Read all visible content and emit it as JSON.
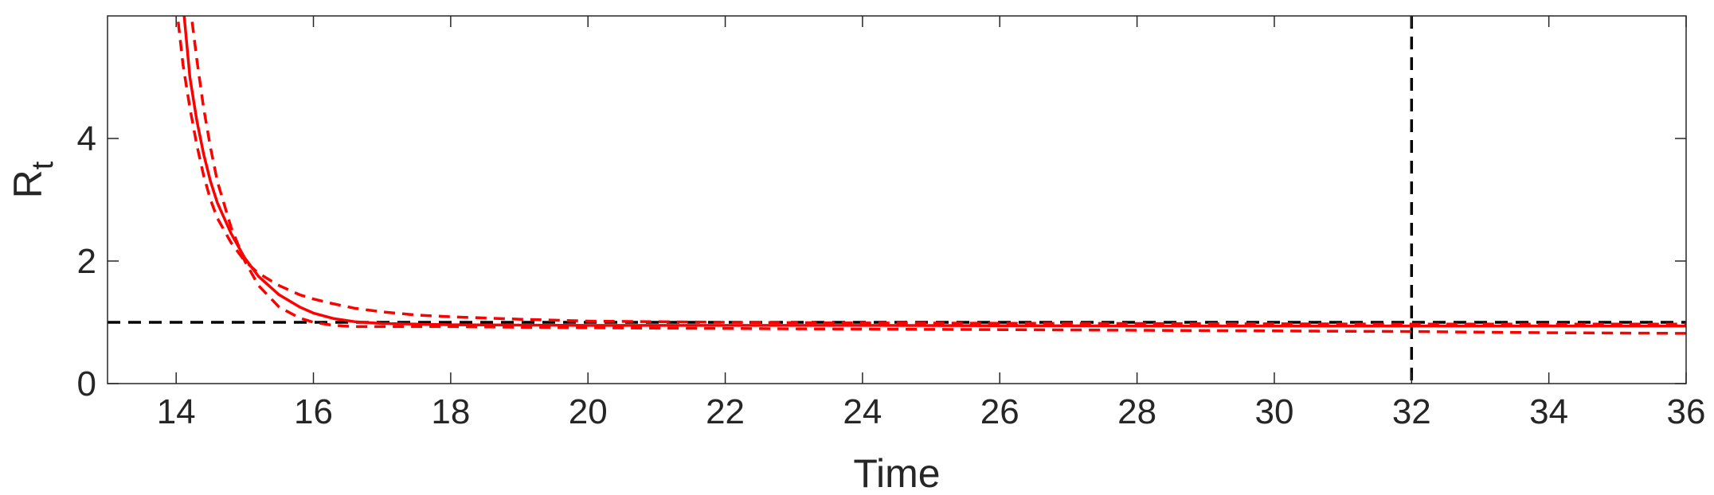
{
  "chart_data": {
    "type": "line",
    "xlabel": "Time",
    "ylabel": "R",
    "ylabel_subscript": "t",
    "xlim": [
      13,
      36
    ],
    "ylim": [
      0,
      6
    ],
    "xticks": [
      14,
      16,
      18,
      20,
      22,
      24,
      26,
      28,
      30,
      32,
      34,
      36
    ],
    "yticks": [
      0,
      2,
      4
    ],
    "grid": false,
    "legend": "none",
    "reference_lines": [
      {
        "orientation": "horizontal",
        "value": 1,
        "style": "dashed",
        "color": "#000000"
      },
      {
        "orientation": "vertical",
        "value": 32,
        "style": "dashed",
        "color": "#000000"
      }
    ],
    "series": [
      {
        "style": "solid",
        "color": "#ff0000",
        "x": [
          14.1,
          14.2,
          14.3,
          14.4,
          14.5,
          14.6,
          14.8,
          15.0,
          15.2,
          15.5,
          15.8,
          16.0,
          16.3,
          16.6,
          17.0,
          17.5,
          18.0,
          19.0,
          20.0,
          22.0,
          24.0,
          26.0,
          28.0,
          30.0,
          32.0,
          34.0,
          36.0
        ],
        "values": [
          6.2,
          5.0,
          4.3,
          3.75,
          3.3,
          2.95,
          2.45,
          2.05,
          1.75,
          1.45,
          1.25,
          1.15,
          1.06,
          1.01,
          0.98,
          0.97,
          0.96,
          0.955,
          0.95,
          0.95,
          0.95,
          0.945,
          0.94,
          0.94,
          0.94,
          0.94,
          0.94
        ]
      },
      {
        "style": "dashed",
        "color": "#ff0000",
        "x": [
          14.0,
          14.1,
          14.2,
          14.3,
          14.4,
          14.5,
          14.6,
          14.8,
          15.0,
          15.2,
          15.5,
          15.8,
          16.0,
          16.3,
          16.6,
          17.0,
          17.5,
          18.0,
          19.0,
          20.0,
          22.0,
          24.0,
          26.0,
          28.0,
          30.0,
          32.0,
          34.0,
          36.0
        ],
        "values": [
          6.2,
          5.2,
          4.5,
          3.9,
          3.4,
          3.0,
          2.7,
          2.3,
          2.0,
          1.8,
          1.6,
          1.45,
          1.38,
          1.3,
          1.23,
          1.17,
          1.12,
          1.09,
          1.05,
          1.02,
          1.0,
          0.99,
          0.985,
          0.98,
          0.975,
          0.97,
          0.97,
          0.97
        ]
      },
      {
        "style": "dashed",
        "color": "#ff0000",
        "x": [
          14.2,
          14.3,
          14.4,
          14.5,
          14.6,
          14.8,
          15.0,
          15.2,
          15.5,
          15.8,
          16.0,
          16.3,
          16.6,
          17.0,
          17.5,
          18.0,
          19.0,
          20.0,
          22.0,
          24.0,
          26.0,
          28.0,
          30.0,
          32.0,
          34.0,
          36.0
        ],
        "values": [
          6.2,
          5.3,
          4.5,
          3.85,
          3.3,
          2.55,
          2.0,
          1.6,
          1.25,
          1.07,
          1.0,
          0.95,
          0.93,
          0.93,
          0.93,
          0.93,
          0.92,
          0.91,
          0.9,
          0.89,
          0.88,
          0.87,
          0.86,
          0.85,
          0.83,
          0.82
        ]
      }
    ]
  }
}
